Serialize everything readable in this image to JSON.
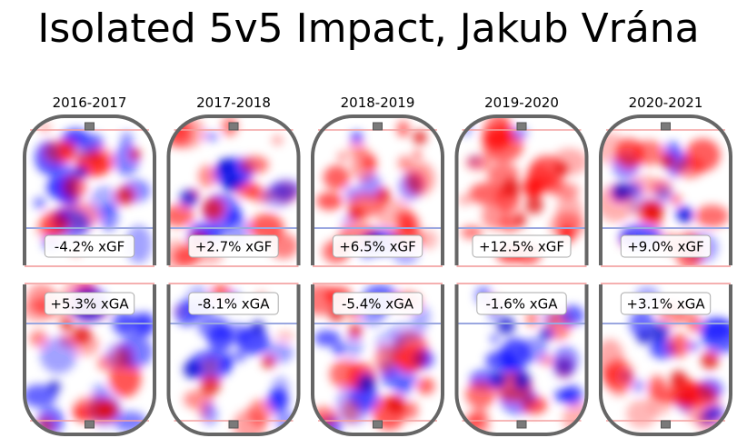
{
  "title": "Isolated 5v5 Impact, Jakub Vrána",
  "chart_data": {
    "type": "heatmap",
    "title": "Isolated 5v5 Impact, Jakub Vrána",
    "panels": [
      {
        "season": "2016-2017",
        "xgf_label": "-4.2% xGF",
        "xga_label": "+5.3% xGA",
        "xgf": -4.2,
        "xga": 5.3
      },
      {
        "season": "2017-2018",
        "xgf_label": "+2.7% xGF",
        "xga_label": "-8.1% xGA",
        "xgf": 2.7,
        "xga": -8.1
      },
      {
        "season": "2018-2019",
        "xgf_label": "+6.5% xGF",
        "xga_label": "-5.4% xGA",
        "xgf": 6.5,
        "xga": -5.4
      },
      {
        "season": "2019-2020",
        "xgf_label": "+12.5% xGF",
        "xga_label": "-1.6% xGA",
        "xgf": 12.5,
        "xga": -1.6
      },
      {
        "season": "2020-2021",
        "xgf_label": "+9.0% xGF",
        "xga_label": "+3.1% xGA",
        "xgf": 9.0,
        "xga": 3.1
      }
    ],
    "colormap": {
      "positive": "#ff0000",
      "negative": "#0000ff",
      "neutral": "#ffffff"
    }
  }
}
